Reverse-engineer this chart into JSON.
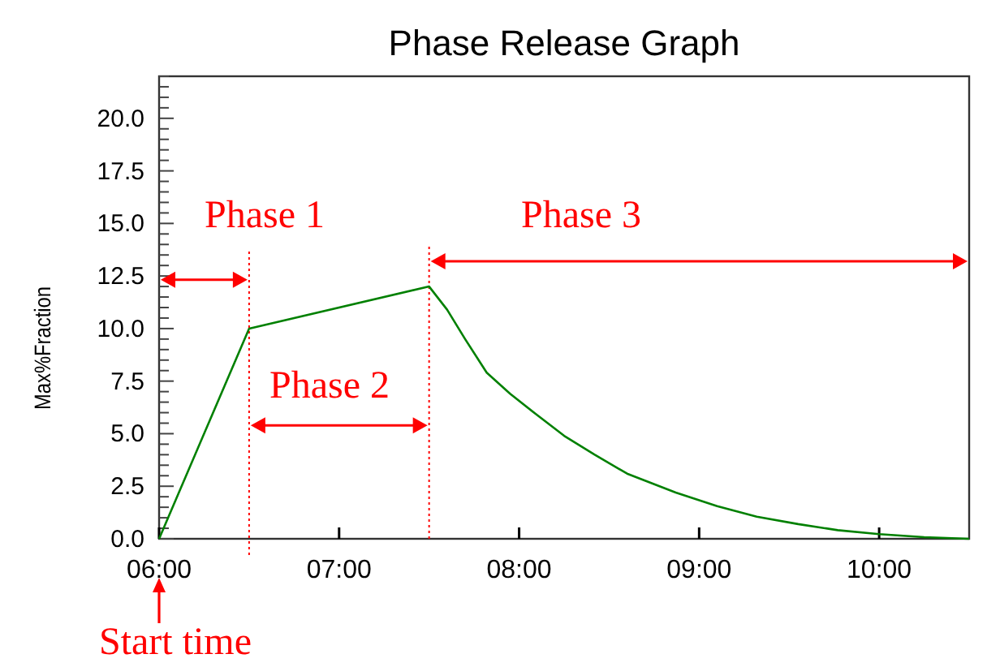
{
  "chart_data": {
    "type": "line",
    "title": "Phase Release Graph",
    "ylabel": "Max%Fraction",
    "x": [
      6,
      6.5,
      7.5,
      7.6,
      7.7,
      7.82,
      7.95,
      8.09,
      8.25,
      8.42,
      8.6,
      8.87,
      9.1,
      9.32,
      9.55,
      9.77,
      10.0,
      10.25,
      10.5
    ],
    "series": [
      {
        "color": "#008000",
        "values": [
          0,
          10,
          12,
          10.9,
          9.5,
          7.9,
          6.9,
          5.95,
          4.9,
          4.0,
          3.1,
          2.2,
          1.55,
          1.05,
          0.7,
          0.41,
          0.22,
          0.08,
          0
        ]
      }
    ],
    "xlim": [
      6,
      10.5
    ],
    "xticks": [
      {
        "value": 6,
        "label": "06:00"
      },
      {
        "value": 7,
        "label": "07:00"
      },
      {
        "value": 8,
        "label": "08:00"
      },
      {
        "value": 9,
        "label": "09:00"
      },
      {
        "value": 10,
        "label": "10:00"
      }
    ],
    "ylim": [
      0,
      22
    ],
    "yticks": [
      {
        "value": 0,
        "label": "0.0"
      },
      {
        "value": 0.5,
        "label": null
      },
      {
        "value": 1,
        "label": null
      },
      {
        "value": 1.5,
        "label": null
      },
      {
        "value": 2,
        "label": null
      },
      {
        "value": 2.5,
        "label": "2.5"
      },
      {
        "value": 3,
        "label": null
      },
      {
        "value": 3.5,
        "label": null
      },
      {
        "value": 4,
        "label": null
      },
      {
        "value": 4.5,
        "label": null
      },
      {
        "value": 5,
        "label": "5.0"
      },
      {
        "value": 5.5,
        "label": null
      },
      {
        "value": 6,
        "label": null
      },
      {
        "value": 6.5,
        "label": null
      },
      {
        "value": 7,
        "label": null
      },
      {
        "value": 7.5,
        "label": "7.5"
      },
      {
        "value": 8,
        "label": null
      },
      {
        "value": 8.5,
        "label": null
      },
      {
        "value": 9,
        "label": null
      },
      {
        "value": 9.5,
        "label": null
      },
      {
        "value": 10,
        "label": "10.0"
      },
      {
        "value": 10.5,
        "label": null
      },
      {
        "value": 11,
        "label": null
      },
      {
        "value": 11.5,
        "label": null
      },
      {
        "value": 12,
        "label": null
      },
      {
        "value": 12.5,
        "label": "12.5"
      },
      {
        "value": 13,
        "label": null
      },
      {
        "value": 13.5,
        "label": null
      },
      {
        "value": 14,
        "label": null
      },
      {
        "value": 14.5,
        "label": null
      },
      {
        "value": 15,
        "label": "15.0"
      },
      {
        "value": 15.5,
        "label": null
      },
      {
        "value": 16,
        "label": null
      },
      {
        "value": 16.5,
        "label": null
      },
      {
        "value": 17,
        "label": null
      },
      {
        "value": 17.5,
        "label": "17.5"
      },
      {
        "value": 18,
        "label": null
      },
      {
        "value": 18.5,
        "label": null
      },
      {
        "value": 19,
        "label": null
      },
      {
        "value": 19.5,
        "label": null
      },
      {
        "value": 20,
        "label": "20.0"
      },
      {
        "value": 20.5,
        "label": null
      },
      {
        "value": 21,
        "label": null
      },
      {
        "value": 21.5,
        "label": null
      },
      {
        "value": 22,
        "label": null
      }
    ],
    "ref_lines": [
      {
        "axis": "x",
        "value": 6.5,
        "color": "#ff0000",
        "line_style": "dotted"
      },
      {
        "axis": "x",
        "value": 7.5,
        "color": "#ff0000",
        "line_style": "dotted"
      }
    ],
    "annotations": [
      "Phase 1",
      "Phase 2",
      "Phase 3",
      "Start time"
    ],
    "grid": false,
    "marker": "none",
    "line_style": "solid"
  }
}
